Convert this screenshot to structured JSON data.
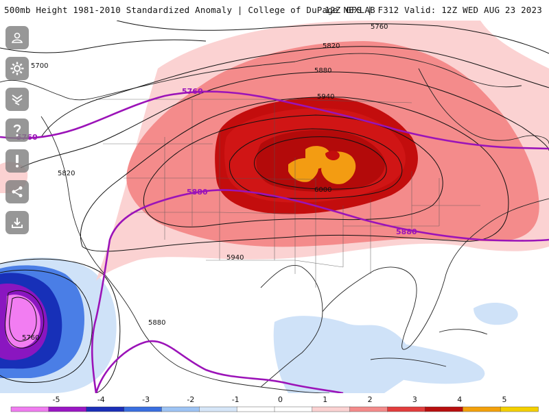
{
  "header": {
    "title_left": "500mb Height 1981-2010 Standardized Anomaly | College of DuPage NEXLAB",
    "title_right": "12Z GFS | F312 Valid: 12Z WED AUG 23 2023"
  },
  "toolbar": [
    {
      "name": "user-icon"
    },
    {
      "name": "gear-icon"
    },
    {
      "name": "layers-icon"
    },
    {
      "name": "help-icon"
    },
    {
      "name": "alert-icon"
    },
    {
      "name": "share-icon"
    },
    {
      "name": "download-icon"
    }
  ],
  "contour_labels": {
    "black": [
      "5760",
      "5820",
      "5700",
      "5880",
      "5940",
      "6000",
      "5820",
      "5940",
      "5880",
      "5760"
    ],
    "purple": [
      "5760",
      "5760",
      "5880",
      "5880"
    ]
  },
  "legend": {
    "ticks": [
      "-5",
      "-4",
      "-3",
      "-2",
      "-1",
      "0",
      "1",
      "2",
      "3",
      "4",
      "5"
    ],
    "colors": [
      "#f07cf0",
      "#9a17c4",
      "#1b2fb8",
      "#3a6fe0",
      "#9ec4f4",
      "#d6e6f8",
      "#ffffff",
      "#ffffff",
      "#fbd2d2",
      "#f48b8b",
      "#e23d3d",
      "#b80f0f",
      "#f3a10c",
      "#f4d000"
    ]
  },
  "colors": {
    "purple_contour": "#9b13b8",
    "anom_1": "#fbd2d2",
    "anom_2": "#f48b8b",
    "anom_3": "#e23d3d",
    "anom_4": "#c30d0d",
    "anom_5": "#f39c12",
    "neg_1": "#cfe2f8",
    "neg_2": "#4a7ee6",
    "neg_3": "#1730b8",
    "neg_4": "#8a16c0",
    "neg_5": "#f27df2"
  }
}
